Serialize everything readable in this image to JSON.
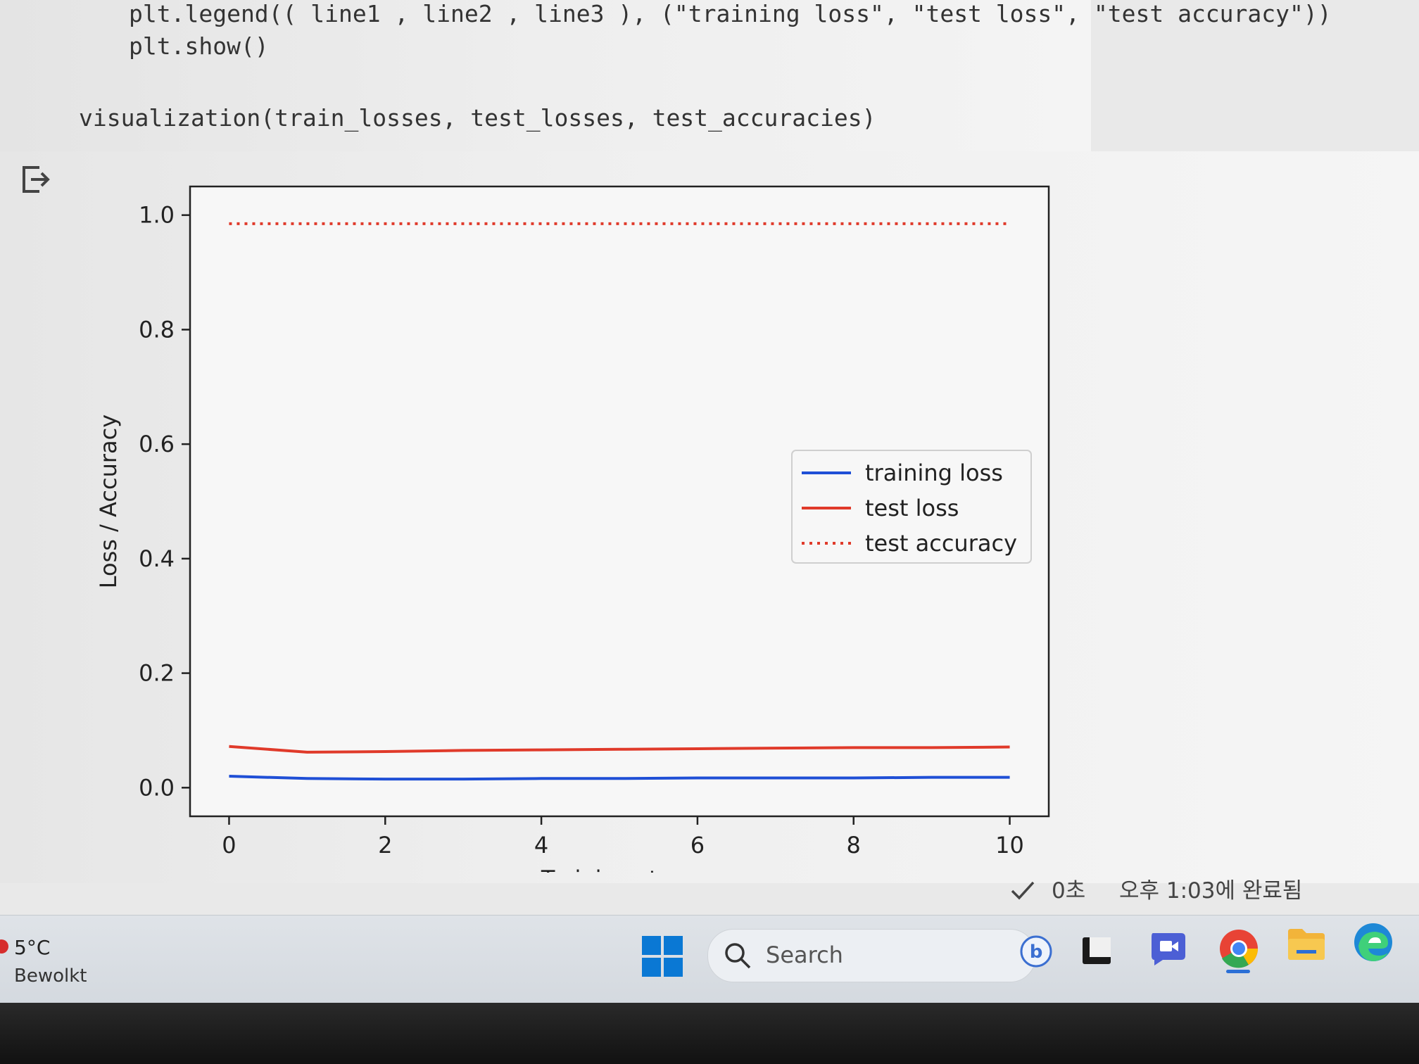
{
  "code": {
    "lines": [
      "plt.legend(( line1 , line2 , line3 ), (\"training loss\", \"test loss\", \"test accuracy\"))",
      "plt.show()",
      "visualization(train_losses, test_losses, test_accuracies)"
    ]
  },
  "output": {
    "icon": "output-arrow-icon"
  },
  "chart_data": {
    "type": "line",
    "title": "",
    "xlabel": "Training steps",
    "ylabel": "Loss / Accuracy",
    "xlim": [
      -0.5,
      10.5
    ],
    "ylim": [
      -0.05,
      1.05
    ],
    "x_ticks": [
      "0",
      "2",
      "4",
      "6",
      "8",
      "10"
    ],
    "y_ticks": [
      "0.0",
      "0.2",
      "0.4",
      "0.6",
      "0.8",
      "1.0"
    ],
    "x": [
      0,
      1,
      2,
      3,
      4,
      5,
      6,
      7,
      8,
      9,
      10
    ],
    "series": [
      {
        "name": "training loss",
        "color": "#1f4fd6",
        "style": "solid",
        "values": [
          0.02,
          0.016,
          0.015,
          0.015,
          0.016,
          0.016,
          0.017,
          0.017,
          0.017,
          0.018,
          0.018
        ]
      },
      {
        "name": "test loss",
        "color": "#e03a2a",
        "style": "solid",
        "values": [
          0.072,
          0.062,
          0.063,
          0.065,
          0.066,
          0.067,
          0.068,
          0.069,
          0.07,
          0.07,
          0.071
        ]
      },
      {
        "name": "test accuracy",
        "color": "#e03a2a",
        "style": "dotted",
        "values": [
          0.985,
          0.985,
          0.985,
          0.985,
          0.985,
          0.985,
          0.985,
          0.985,
          0.985,
          0.985,
          0.985
        ]
      }
    ],
    "legend_position": "center-right",
    "grid": false
  },
  "status": {
    "check_icon": "check-icon",
    "duration": "0초",
    "completed": "오후 1:03에 완료됨"
  },
  "taskbar": {
    "weather_temp": "5°C",
    "weather_condition": "Bewolkt",
    "search_placeholder": "Search",
    "icons": [
      "windows-start-icon",
      "search-icon",
      "bing-icon",
      "terminal-icon",
      "meet-icon",
      "chrome-icon",
      "file-explorer-icon",
      "edge-icon"
    ]
  },
  "colors": {
    "training_loss": "#1f4fd6",
    "test_loss": "#e03a2a",
    "windows_blue": "#0a78d4"
  }
}
